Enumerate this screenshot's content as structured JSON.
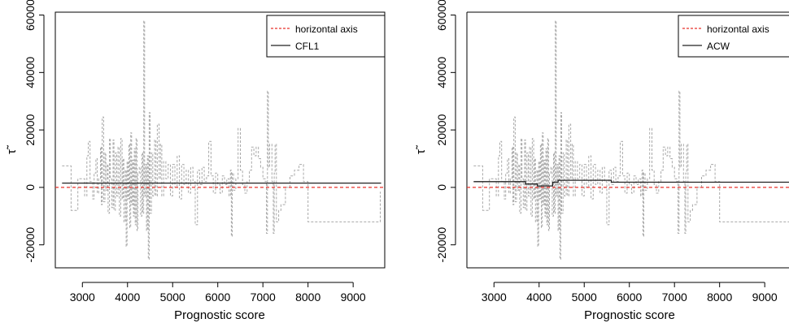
{
  "chart_data": [
    {
      "type": "line",
      "title": "",
      "xlabel": "Prognostic score",
      "ylabel": "τ̃",
      "xlim": [
        2400,
        9700
      ],
      "ylim": [
        -28000,
        61000
      ],
      "xticks": [
        3000,
        4000,
        5000,
        6000,
        7000,
        8000,
        9000
      ],
      "yticks": [
        -20000,
        0,
        20000,
        40000,
        60000
      ],
      "legend": {
        "position": "top-right",
        "entries": [
          "horizontal axis",
          "CFL1"
        ]
      },
      "series": [
        {
          "name": "horizontal axis",
          "style": "dashed",
          "color": "#e8322b",
          "x": [
            2400,
            9700
          ],
          "y": [
            0,
            0
          ]
        },
        {
          "name": "CFL1",
          "style": "solid",
          "color": "#222222",
          "x": [
            2550,
            9620
          ],
          "y": [
            1500,
            1500
          ]
        }
      ],
      "background_series": {
        "style": "dashed",
        "color": "#a8a8a8",
        "x": [
          2550,
          2700,
          2750,
          2850,
          2900,
          3000,
          3050,
          3100,
          3130,
          3170,
          3200,
          3230,
          3260,
          3300,
          3330,
          3360,
          3400,
          3420,
          3440,
          3470,
          3500,
          3520,
          3550,
          3570,
          3600,
          3620,
          3650,
          3680,
          3700,
          3730,
          3760,
          3790,
          3820,
          3850,
          3880,
          3900,
          3920,
          3950,
          3970,
          3990,
          4010,
          4030,
          4050,
          4070,
          4090,
          4110,
          4130,
          4150,
          4170,
          4190,
          4210,
          4230,
          4260,
          4290,
          4320,
          4340,
          4360,
          4380,
          4400,
          4420,
          4440,
          4460,
          4480,
          4500,
          4530,
          4560,
          4600,
          4630,
          4660,
          4700,
          4730,
          4760,
          4800,
          4850,
          4900,
          4950,
          5000,
          5050,
          5100,
          5150,
          5200,
          5250,
          5300,
          5350,
          5400,
          5450,
          5500,
          5550,
          5600,
          5650,
          5700,
          5750,
          5800,
          5850,
          5900,
          5950,
          6000,
          6050,
          6100,
          6150,
          6200,
          6250,
          6280,
          6300,
          6320,
          6350,
          6400,
          6450,
          6500,
          6550,
          6600,
          6650,
          6700,
          6750,
          6800,
          6850,
          6900,
          6950,
          7000,
          7050,
          7080,
          7100,
          7120,
          7150,
          7200,
          7230,
          7250,
          7270,
          7300,
          7350,
          7400,
          7500,
          7600,
          7700,
          7800,
          7900,
          8000,
          8100,
          8500,
          9000,
          9100,
          9600
        ],
        "y": [
          7500,
          7500,
          -8000,
          -8000,
          3000,
          3000,
          -3000,
          11000,
          16000,
          2000,
          2000,
          -4000,
          5000,
          10000,
          -2000,
          3000,
          14000,
          -6000,
          24500,
          -5000,
          12000,
          -1000,
          8000,
          -9000,
          17000,
          3000,
          -7000,
          16500,
          -8000,
          12000,
          -3000,
          14000,
          -10000,
          17000,
          -4000,
          10000,
          -12000,
          6000,
          -20500,
          9000,
          -4000,
          15000,
          -14000,
          19000,
          -6000,
          9500,
          -10000,
          13500,
          -13000,
          17000,
          -15000,
          5000,
          7000,
          -10000,
          12000,
          -9000,
          58000,
          -3000,
          8000,
          -15000,
          11000,
          -25000,
          26000,
          -9000,
          12000,
          -3000,
          16500,
          -3000,
          22000,
          3000,
          15000,
          -3000,
          9000,
          3000,
          8000,
          -3000,
          8000,
          0,
          11000,
          -4000,
          8000,
          1000,
          6000,
          -2000,
          7000,
          2000,
          -13000,
          6000,
          1000,
          7000,
          2000,
          4000,
          16000,
          4000,
          -2000,
          5000,
          1000,
          -2000,
          4000,
          1000,
          3000,
          -3000,
          6000,
          -17000,
          5000,
          -1000,
          3000,
          20500,
          6000,
          1000,
          -2000,
          2000,
          6000,
          14000,
          11000,
          14000,
          10000,
          7000,
          3000,
          2000,
          -16000,
          33500,
          7000,
          15000,
          2000,
          -16000,
          5000,
          15000,
          -12000,
          -8000,
          -6000,
          0,
          4000,
          6000,
          8000,
          2000,
          -12000,
          -12000,
          -12000,
          -12000,
          -12000,
          -1500
        ]
      }
    },
    {
      "type": "line",
      "title": "",
      "xlabel": "Prognostic score",
      "ylabel": "τ̃",
      "xlim": [
        2400,
        9700
      ],
      "ylim": [
        -28000,
        61000
      ],
      "xticks": [
        3000,
        4000,
        5000,
        6000,
        7000,
        8000,
        9000
      ],
      "yticks": [
        -20000,
        0,
        20000,
        40000,
        60000
      ],
      "legend": {
        "position": "top-right",
        "entries": [
          "horizontal axis",
          "ACW"
        ]
      },
      "series": [
        {
          "name": "horizontal axis",
          "style": "dashed",
          "color": "#e8322b",
          "x": [
            2400,
            9700
          ],
          "y": [
            0,
            0
          ]
        },
        {
          "name": "ACW",
          "style": "solid",
          "color": "#222222",
          "x": [
            2550,
            3700,
            3700,
            3960,
            3960,
            4300,
            4300,
            4420,
            4420,
            5600,
            5600,
            9620
          ],
          "y": [
            2000,
            2000,
            1200,
            1200,
            500,
            500,
            1800,
            1800,
            2500,
            2500,
            1800,
            1800
          ]
        }
      ],
      "background_series": {
        "same_as_panel": 0
      }
    }
  ]
}
